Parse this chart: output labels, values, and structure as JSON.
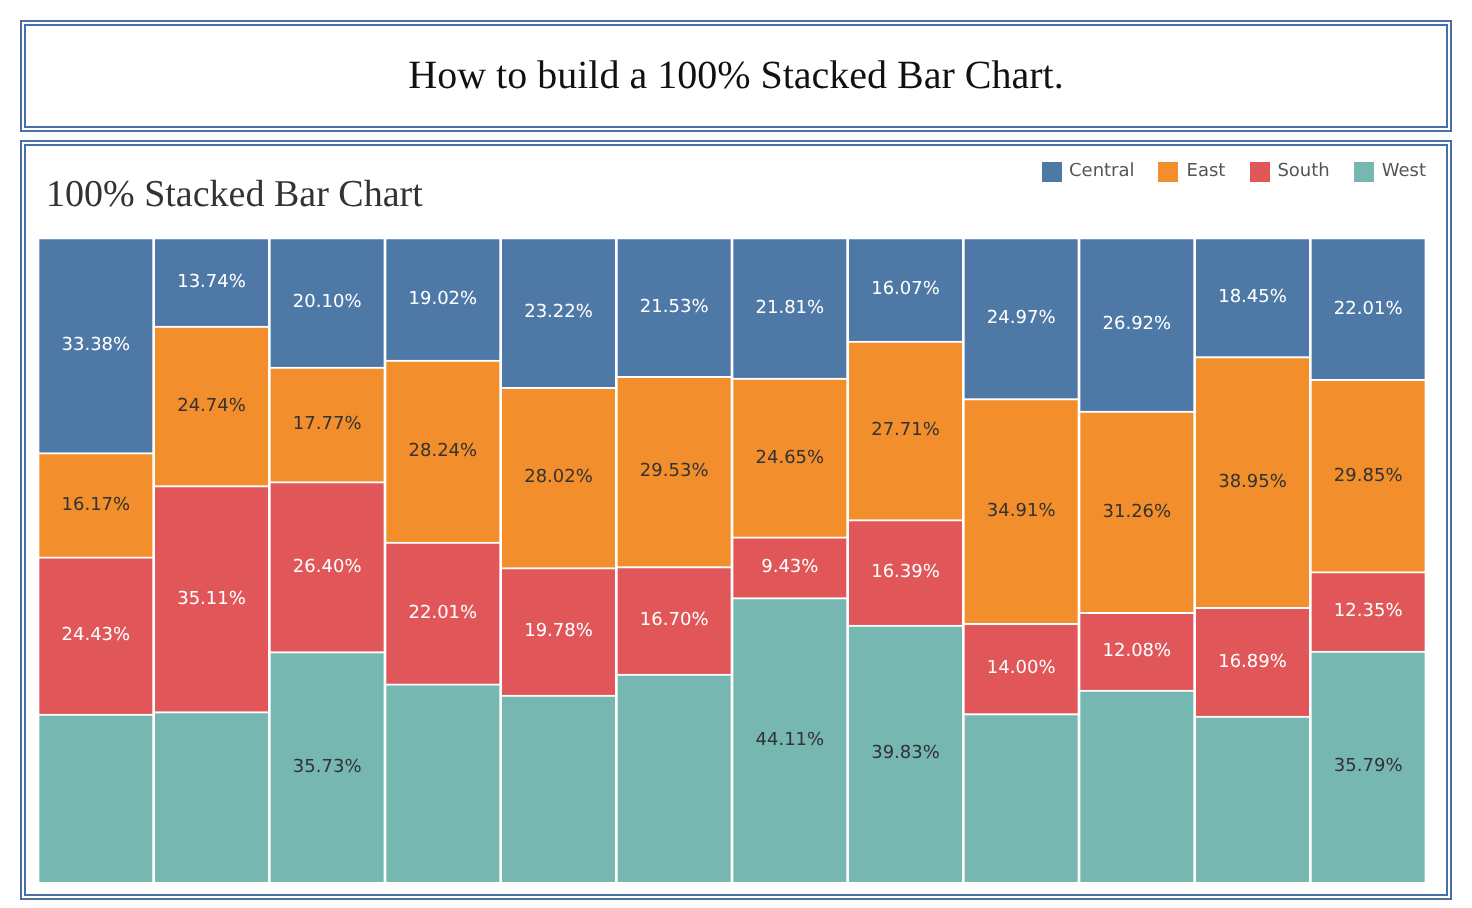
{
  "chart_data": {
    "type": "bar",
    "title": "How to build a 100% Stacked Bar Chart.",
    "subtitle": "100% Stacked Bar Chart",
    "categories": [
      null,
      null,
      null,
      null,
      null,
      null,
      null,
      null,
      null,
      null,
      null,
      null
    ],
    "stacked": true,
    "ylim": [
      0,
      100
    ],
    "tick_labels": false,
    "legend": "top right",
    "series": [
      {
        "name": "West",
        "color": "#76b7b2",
        "values": [
          26.02,
          26.41,
          35.73,
          30.73,
          28.98,
          32.24,
          44.11,
          39.83,
          26.12,
          29.74,
          25.71,
          35.79
        ],
        "value_labels": [
          null,
          null,
          "35.73%",
          null,
          null,
          null,
          "44.11%",
          "39.83%",
          null,
          null,
          null,
          "35.79%"
        ]
      },
      {
        "name": "South",
        "color": "#e15759",
        "values": [
          24.43,
          35.11,
          26.4,
          22.01,
          19.78,
          16.7,
          9.43,
          16.39,
          14.0,
          12.08,
          16.89,
          12.35
        ],
        "value_labels": [
          "24.43%",
          "35.11%",
          "26.40%",
          "22.01%",
          "19.78%",
          "16.70%",
          "9.43%",
          "16.39%",
          "14.00%",
          "12.08%",
          "16.89%",
          "12.35%"
        ]
      },
      {
        "name": "East",
        "color": "#f28e2b",
        "values": [
          16.17,
          24.74,
          17.77,
          28.24,
          28.02,
          29.53,
          24.65,
          27.71,
          34.91,
          31.26,
          38.95,
          29.85
        ],
        "value_labels": [
          "16.17%",
          "24.74%",
          "17.77%",
          "28.24%",
          "28.02%",
          "29.53%",
          "24.65%",
          "27.71%",
          "34.91%",
          "31.26%",
          "38.95%",
          "29.85%"
        ]
      },
      {
        "name": "Central",
        "color": "#4e79a7",
        "values": [
          33.38,
          13.74,
          20.1,
          19.02,
          23.22,
          21.53,
          21.81,
          16.07,
          24.97,
          26.92,
          18.45,
          22.01
        ],
        "value_labels": [
          "33.38%",
          "13.74%",
          "20.10%",
          "19.02%",
          "23.22%",
          "21.53%",
          "21.81%",
          "16.07%",
          "24.97%",
          "26.92%",
          "18.45%",
          "22.01%"
        ]
      }
    ]
  }
}
